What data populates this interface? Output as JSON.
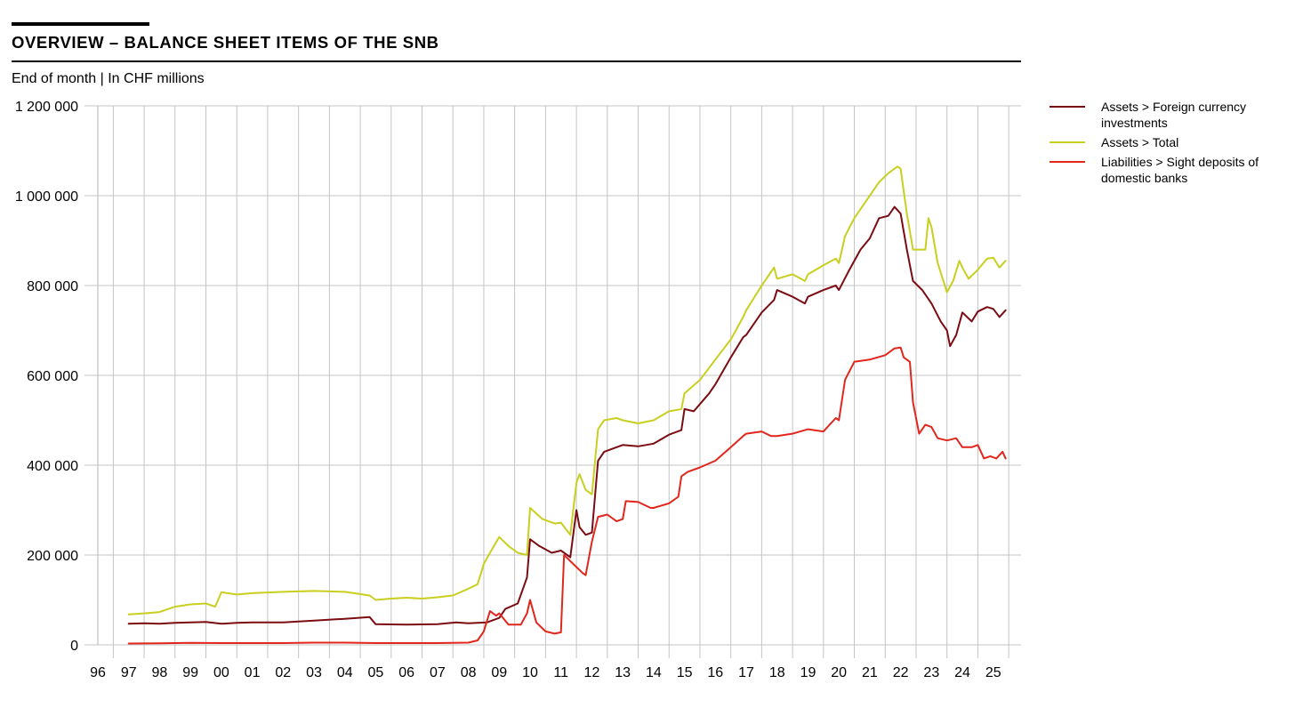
{
  "header": {
    "title": "OVERVIEW – BALANCE SHEET ITEMS OF THE SNB",
    "subtitle": "End of month | In CHF millions"
  },
  "legend": {
    "items": [
      {
        "label": "Assets > Foreign currency investments",
        "color": "#7b0c12"
      },
      {
        "label": "Assets > Total",
        "color": "#c8cf1f"
      },
      {
        "label": "Liabilities > Sight deposits of domestic banks",
        "color": "#e1261c"
      }
    ]
  },
  "chart_data": {
    "type": "line",
    "title": "OVERVIEW – BALANCE SHEET ITEMS OF THE SNB",
    "subtitle": "End of month | In CHF millions",
    "xlabel": "",
    "ylabel": "",
    "xlim": [
      1996.0,
      2025.9
    ],
    "ylim": [
      0,
      1200000
    ],
    "x_ticks": [
      {
        "value": 1996,
        "label": "96"
      },
      {
        "value": 1997,
        "label": "97"
      },
      {
        "value": 1998,
        "label": "98"
      },
      {
        "value": 1999,
        "label": "99"
      },
      {
        "value": 2000,
        "label": "00"
      },
      {
        "value": 2001,
        "label": "01"
      },
      {
        "value": 2002,
        "label": "02"
      },
      {
        "value": 2003,
        "label": "03"
      },
      {
        "value": 2004,
        "label": "04"
      },
      {
        "value": 2005,
        "label": "05"
      },
      {
        "value": 2006,
        "label": "06"
      },
      {
        "value": 2007,
        "label": "07"
      },
      {
        "value": 2008,
        "label": "08"
      },
      {
        "value": 2009,
        "label": "09"
      },
      {
        "value": 2010,
        "label": "10"
      },
      {
        "value": 2011,
        "label": "11"
      },
      {
        "value": 2012,
        "label": "12"
      },
      {
        "value": 2013,
        "label": "13"
      },
      {
        "value": 2014,
        "label": "14"
      },
      {
        "value": 2015,
        "label": "15"
      },
      {
        "value": 2016,
        "label": "16"
      },
      {
        "value": 2017,
        "label": "17"
      },
      {
        "value": 2018,
        "label": "18"
      },
      {
        "value": 2019,
        "label": "19"
      },
      {
        "value": 2020,
        "label": "20"
      },
      {
        "value": 2021,
        "label": "21"
      },
      {
        "value": 2022,
        "label": "22"
      },
      {
        "value": 2023,
        "label": "23"
      },
      {
        "value": 2024,
        "label": "24"
      },
      {
        "value": 2025,
        "label": "25"
      }
    ],
    "y_ticks": [
      {
        "value": 0,
        "label": "0"
      },
      {
        "value": 200000,
        "label": "200 000"
      },
      {
        "value": 400000,
        "label": "400 000"
      },
      {
        "value": 600000,
        "label": "600 000"
      },
      {
        "value": 800000,
        "label": "800 000"
      },
      {
        "value": 1000000,
        "label": "1 000 000"
      },
      {
        "value": 1200000,
        "label": "1 200 000"
      }
    ],
    "grid": true,
    "legend_position": "right",
    "series": [
      {
        "name": "Assets > Foreign currency investments",
        "color": "#7b0c12",
        "points": [
          [
            1997.0,
            47000
          ],
          [
            1997.5,
            48000
          ],
          [
            1998.0,
            47000
          ],
          [
            1998.5,
            49000
          ],
          [
            1999.0,
            50000
          ],
          [
            1999.5,
            51000
          ],
          [
            2000.0,
            47000
          ],
          [
            2000.5,
            49000
          ],
          [
            2001.0,
            50000
          ],
          [
            2002.0,
            50000
          ],
          [
            2003.0,
            54000
          ],
          [
            2004.0,
            58000
          ],
          [
            2004.8,
            62000
          ],
          [
            2005.0,
            46000
          ],
          [
            2006.0,
            45000
          ],
          [
            2007.0,
            46000
          ],
          [
            2007.6,
            50000
          ],
          [
            2008.0,
            48000
          ],
          [
            2008.6,
            50000
          ],
          [
            2009.0,
            60000
          ],
          [
            2009.2,
            80000
          ],
          [
            2009.6,
            92000
          ],
          [
            2009.9,
            150000
          ],
          [
            2010.0,
            235000
          ],
          [
            2010.3,
            220000
          ],
          [
            2010.7,
            205000
          ],
          [
            2011.0,
            210000
          ],
          [
            2011.3,
            195000
          ],
          [
            2011.5,
            300000
          ],
          [
            2011.6,
            262000
          ],
          [
            2011.8,
            245000
          ],
          [
            2012.0,
            250000
          ],
          [
            2012.2,
            410000
          ],
          [
            2012.4,
            430000
          ],
          [
            2012.8,
            440000
          ],
          [
            2013.0,
            445000
          ],
          [
            2013.5,
            442000
          ],
          [
            2014.0,
            448000
          ],
          [
            2014.5,
            468000
          ],
          [
            2014.9,
            478000
          ],
          [
            2015.0,
            525000
          ],
          [
            2015.3,
            520000
          ],
          [
            2015.8,
            560000
          ],
          [
            2016.0,
            580000
          ],
          [
            2016.5,
            640000
          ],
          [
            2016.9,
            685000
          ],
          [
            2017.0,
            690000
          ],
          [
            2017.5,
            740000
          ],
          [
            2017.9,
            768000
          ],
          [
            2018.0,
            790000
          ],
          [
            2018.5,
            775000
          ],
          [
            2018.9,
            760000
          ],
          [
            2019.0,
            775000
          ],
          [
            2019.5,
            790000
          ],
          [
            2019.9,
            800000
          ],
          [
            2020.0,
            790000
          ],
          [
            2020.3,
            830000
          ],
          [
            2020.7,
            880000
          ],
          [
            2021.0,
            905000
          ],
          [
            2021.3,
            950000
          ],
          [
            2021.6,
            955000
          ],
          [
            2021.8,
            975000
          ],
          [
            2022.0,
            960000
          ],
          [
            2022.2,
            880000
          ],
          [
            2022.4,
            810000
          ],
          [
            2022.7,
            790000
          ],
          [
            2023.0,
            760000
          ],
          [
            2023.3,
            720000
          ],
          [
            2023.5,
            700000
          ],
          [
            2023.6,
            665000
          ],
          [
            2023.8,
            690000
          ],
          [
            2024.0,
            740000
          ],
          [
            2024.3,
            720000
          ],
          [
            2024.5,
            742000
          ],
          [
            2024.8,
            752000
          ],
          [
            2025.0,
            748000
          ],
          [
            2025.2,
            730000
          ],
          [
            2025.4,
            745000
          ]
        ]
      },
      {
        "name": "Assets > Total",
        "color": "#c8cf1f",
        "points": [
          [
            1997.0,
            68000
          ],
          [
            1997.5,
            70000
          ],
          [
            1998.0,
            73000
          ],
          [
            1998.5,
            85000
          ],
          [
            1999.0,
            90000
          ],
          [
            1999.5,
            92000
          ],
          [
            1999.8,
            85000
          ],
          [
            2000.0,
            117000
          ],
          [
            2000.5,
            112000
          ],
          [
            2001.0,
            115000
          ],
          [
            2002.0,
            118000
          ],
          [
            2003.0,
            120000
          ],
          [
            2004.0,
            118000
          ],
          [
            2004.8,
            110000
          ],
          [
            2005.0,
            100000
          ],
          [
            2005.5,
            103000
          ],
          [
            2006.0,
            105000
          ],
          [
            2006.5,
            103000
          ],
          [
            2007.0,
            106000
          ],
          [
            2007.5,
            110000
          ],
          [
            2008.0,
            125000
          ],
          [
            2008.3,
            135000
          ],
          [
            2008.5,
            180000
          ],
          [
            2008.7,
            205000
          ],
          [
            2009.0,
            240000
          ],
          [
            2009.3,
            220000
          ],
          [
            2009.6,
            205000
          ],
          [
            2009.9,
            200000
          ],
          [
            2010.0,
            305000
          ],
          [
            2010.4,
            280000
          ],
          [
            2010.8,
            270000
          ],
          [
            2011.0,
            272000
          ],
          [
            2011.3,
            245000
          ],
          [
            2011.5,
            360000
          ],
          [
            2011.6,
            380000
          ],
          [
            2011.8,
            345000
          ],
          [
            2012.0,
            335000
          ],
          [
            2012.2,
            480000
          ],
          [
            2012.4,
            500000
          ],
          [
            2012.8,
            505000
          ],
          [
            2013.0,
            500000
          ],
          [
            2013.5,
            493000
          ],
          [
            2014.0,
            500000
          ],
          [
            2014.5,
            520000
          ],
          [
            2014.9,
            525000
          ],
          [
            2015.0,
            560000
          ],
          [
            2015.5,
            590000
          ],
          [
            2016.0,
            635000
          ],
          [
            2016.5,
            680000
          ],
          [
            2016.9,
            730000
          ],
          [
            2017.0,
            745000
          ],
          [
            2017.5,
            800000
          ],
          [
            2017.9,
            840000
          ],
          [
            2018.0,
            815000
          ],
          [
            2018.5,
            825000
          ],
          [
            2018.9,
            810000
          ],
          [
            2019.0,
            825000
          ],
          [
            2019.5,
            845000
          ],
          [
            2019.9,
            860000
          ],
          [
            2020.0,
            850000
          ],
          [
            2020.2,
            910000
          ],
          [
            2020.5,
            950000
          ],
          [
            2021.0,
            1000000
          ],
          [
            2021.3,
            1030000
          ],
          [
            2021.6,
            1050000
          ],
          [
            2021.9,
            1065000
          ],
          [
            2022.0,
            1060000
          ],
          [
            2022.2,
            960000
          ],
          [
            2022.4,
            880000
          ],
          [
            2022.8,
            880000
          ],
          [
            2022.9,
            950000
          ],
          [
            2023.0,
            930000
          ],
          [
            2023.2,
            850000
          ],
          [
            2023.5,
            785000
          ],
          [
            2023.7,
            810000
          ],
          [
            2023.9,
            855000
          ],
          [
            2024.0,
            840000
          ],
          [
            2024.2,
            815000
          ],
          [
            2024.5,
            835000
          ],
          [
            2024.8,
            860000
          ],
          [
            2025.0,
            862000
          ],
          [
            2025.2,
            840000
          ],
          [
            2025.4,
            855000
          ]
        ]
      },
      {
        "name": "Liabilities > Sight deposits of domestic banks",
        "color": "#e1261c",
        "points": [
          [
            1997.0,
            3000
          ],
          [
            1998.0,
            3500
          ],
          [
            1999.0,
            4500
          ],
          [
            2000.0,
            4000
          ],
          [
            2001.0,
            4000
          ],
          [
            2002.0,
            4000
          ],
          [
            2003.0,
            5000
          ],
          [
            2004.0,
            5000
          ],
          [
            2005.0,
            4000
          ],
          [
            2006.0,
            4000
          ],
          [
            2007.0,
            4000
          ],
          [
            2008.0,
            5000
          ],
          [
            2008.3,
            10000
          ],
          [
            2008.5,
            30000
          ],
          [
            2008.7,
            75000
          ],
          [
            2008.9,
            65000
          ],
          [
            2009.0,
            70000
          ],
          [
            2009.3,
            45000
          ],
          [
            2009.7,
            45000
          ],
          [
            2009.9,
            70000
          ],
          [
            2010.0,
            100000
          ],
          [
            2010.2,
            50000
          ],
          [
            2010.5,
            30000
          ],
          [
            2010.8,
            25000
          ],
          [
            2011.0,
            28000
          ],
          [
            2011.1,
            200000
          ],
          [
            2011.4,
            180000
          ],
          [
            2011.7,
            160000
          ],
          [
            2011.8,
            155000
          ],
          [
            2012.0,
            230000
          ],
          [
            2012.2,
            285000
          ],
          [
            2012.5,
            290000
          ],
          [
            2012.8,
            275000
          ],
          [
            2013.0,
            280000
          ],
          [
            2013.1,
            320000
          ],
          [
            2013.5,
            318000
          ],
          [
            2013.9,
            305000
          ],
          [
            2014.0,
            305000
          ],
          [
            2014.5,
            315000
          ],
          [
            2014.8,
            330000
          ],
          [
            2014.9,
            375000
          ],
          [
            2015.1,
            385000
          ],
          [
            2015.5,
            395000
          ],
          [
            2016.0,
            410000
          ],
          [
            2016.5,
            440000
          ],
          [
            2016.9,
            465000
          ],
          [
            2017.0,
            470000
          ],
          [
            2017.5,
            475000
          ],
          [
            2017.8,
            465000
          ],
          [
            2018.0,
            465000
          ],
          [
            2018.5,
            470000
          ],
          [
            2019.0,
            480000
          ],
          [
            2019.5,
            475000
          ],
          [
            2019.9,
            505000
          ],
          [
            2020.0,
            500000
          ],
          [
            2020.2,
            590000
          ],
          [
            2020.5,
            630000
          ],
          [
            2021.0,
            635000
          ],
          [
            2021.5,
            645000
          ],
          [
            2021.8,
            660000
          ],
          [
            2022.0,
            662000
          ],
          [
            2022.1,
            640000
          ],
          [
            2022.3,
            630000
          ],
          [
            2022.4,
            540000
          ],
          [
            2022.6,
            470000
          ],
          [
            2022.8,
            490000
          ],
          [
            2023.0,
            485000
          ],
          [
            2023.2,
            460000
          ],
          [
            2023.5,
            455000
          ],
          [
            2023.8,
            460000
          ],
          [
            2024.0,
            440000
          ],
          [
            2024.3,
            440000
          ],
          [
            2024.5,
            445000
          ],
          [
            2024.7,
            415000
          ],
          [
            2024.9,
            420000
          ],
          [
            2025.1,
            415000
          ],
          [
            2025.3,
            430000
          ],
          [
            2025.4,
            415000
          ]
        ]
      }
    ]
  }
}
